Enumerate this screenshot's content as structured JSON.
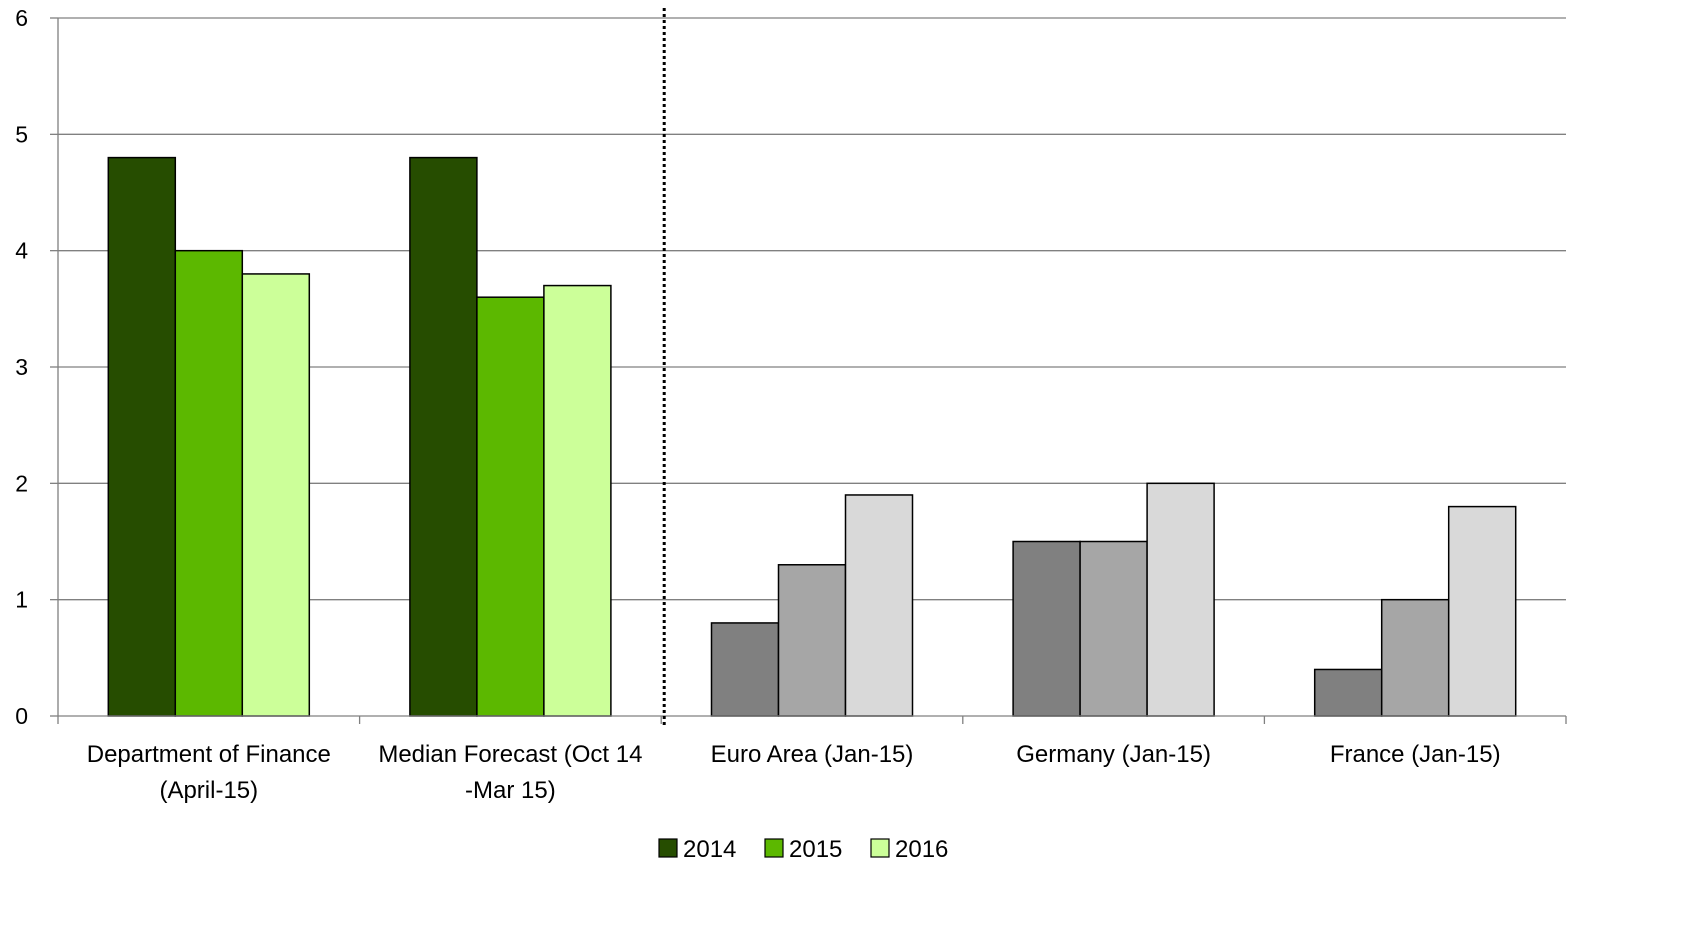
{
  "chart_data": {
    "type": "bar",
    "title": "",
    "xlabel": "",
    "ylabel": "",
    "ylim": [
      0,
      6
    ],
    "yticks": [
      "0",
      "1",
      "2",
      "3",
      "4",
      "5",
      "6"
    ],
    "grid": true,
    "legend_position": "bottom",
    "categories": [
      [
        "Department of Finance",
        "(April-15)"
      ],
      [
        "Median Forecast (Oct 14",
        "-Mar 15)"
      ],
      [
        "Euro Area (Jan-15)"
      ],
      [
        "Germany (Jan-15)"
      ],
      [
        "France (Jan-15)"
      ]
    ],
    "series": [
      {
        "name": "2014",
        "values": [
          4.8,
          4.8,
          0.8,
          1.5,
          0.4
        ]
      },
      {
        "name": "2015",
        "values": [
          4.0,
          3.6,
          1.3,
          1.5,
          1.0
        ]
      },
      {
        "name": "2016",
        "values": [
          3.8,
          3.7,
          1.9,
          2.0,
          1.8
        ]
      }
    ],
    "colors": {
      "highlighted": [
        "#264d00",
        "#5cb800",
        "#ccff99"
      ],
      "others": [
        "#808080",
        "#a6a6a6",
        "#d9d9d9"
      ],
      "gridline": "#808080",
      "divider": "#000000"
    },
    "highlighted_categories": 2,
    "divider_after_category": 2
  }
}
